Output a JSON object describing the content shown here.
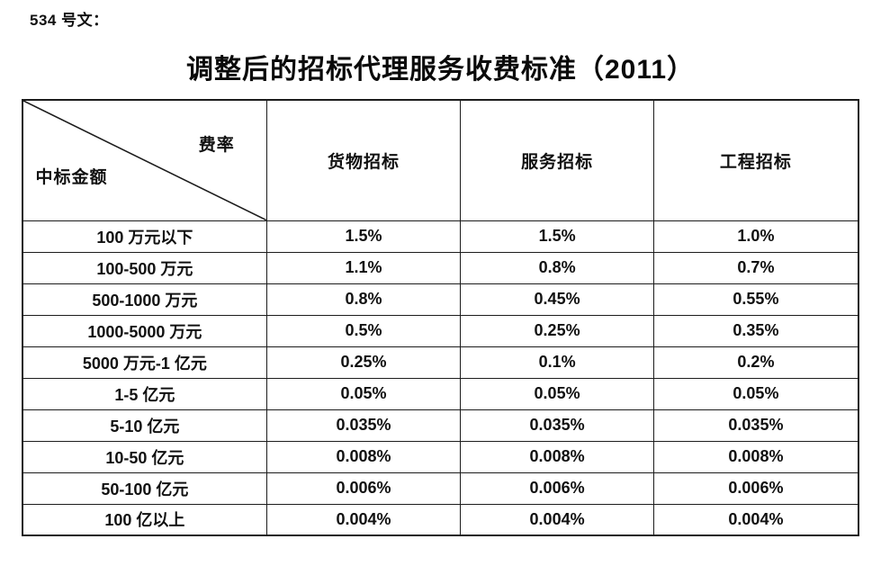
{
  "page": {
    "doc_label": "534 号文：",
    "title": "调整后的招标代理服务收费标准（2011）"
  },
  "table": {
    "corner": {
      "top_right_label": "费率",
      "bottom_left_label": "中标金额"
    },
    "columns": [
      "货物招标",
      "服务招标",
      "工程招标"
    ],
    "rows": [
      {
        "amount": "100 万元以下",
        "values": [
          "1.5%",
          "1.5%",
          "1.0%"
        ]
      },
      {
        "amount": "100-500 万元",
        "values": [
          "1.1%",
          "0.8%",
          "0.7%"
        ]
      },
      {
        "amount": "500-1000 万元",
        "values": [
          "0.8%",
          "0.45%",
          "0.55%"
        ]
      },
      {
        "amount": "1000-5000 万元",
        "values": [
          "0.5%",
          "0.25%",
          "0.35%"
        ]
      },
      {
        "amount": "5000 万元-1 亿元",
        "values": [
          "0.25%",
          "0.1%",
          "0.2%"
        ]
      },
      {
        "amount": "1-5 亿元",
        "values": [
          "0.05%",
          "0.05%",
          "0.05%"
        ]
      },
      {
        "amount": "5-10 亿元",
        "values": [
          "0.035%",
          "0.035%",
          "0.035%"
        ]
      },
      {
        "amount": "10-50 亿元",
        "values": [
          "0.008%",
          "0.008%",
          "0.008%"
        ]
      },
      {
        "amount": "50-100 亿元",
        "values": [
          "0.006%",
          "0.006%",
          "0.006%"
        ]
      },
      {
        "amount": "100 亿以上",
        "values": [
          "0.004%",
          "0.004%",
          "0.004%"
        ]
      }
    ],
    "colors": {
      "border": "#1c1c1c",
      "text": "#111111",
      "background": "#ffffff"
    }
  }
}
